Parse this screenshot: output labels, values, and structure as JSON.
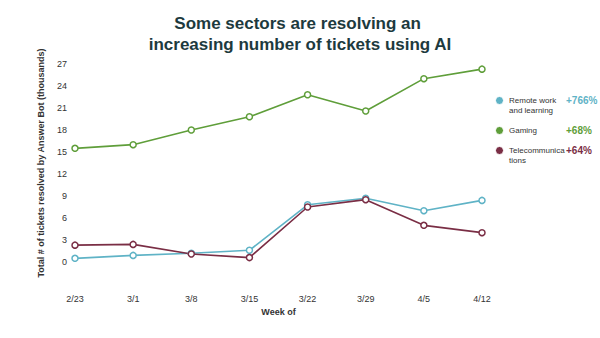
{
  "chart_data": {
    "type": "line",
    "title": "Some sectors are resolving an increasing number of tickets using AI",
    "x_label": "Week of",
    "y_label": "Total # of tickets resolved by Answer Bot (thousands)",
    "categories": [
      "2/23",
      "3/1",
      "3/8",
      "3/15",
      "3/22",
      "3/29",
      "4/5",
      "4/12"
    ],
    "series": [
      {
        "name": "Remote work and learning",
        "color": "#5fb3c6",
        "annotation": "+766%",
        "values": [
          0.5,
          0.9,
          1.2,
          1.6,
          7.8,
          8.7,
          7.0,
          8.4
        ]
      },
      {
        "name": "Gaming",
        "color": "#5f9e3a",
        "annotation": "+68%",
        "values": [
          15.5,
          16.0,
          18.0,
          19.8,
          22.8,
          20.6,
          25.0,
          26.3
        ]
      },
      {
        "name": "Telecommunications",
        "color": "#7a2e45",
        "annotation": "+64%",
        "values": [
          2.3,
          2.4,
          1.1,
          0.6,
          7.5,
          8.5,
          5.0,
          4.0
        ]
      }
    ],
    "ylim": [
      0,
      27
    ],
    "yticks": [
      0,
      3,
      6,
      9,
      12,
      15,
      18,
      21,
      24,
      27
    ],
    "grid": false,
    "marker": "circle",
    "legend": "right"
  }
}
